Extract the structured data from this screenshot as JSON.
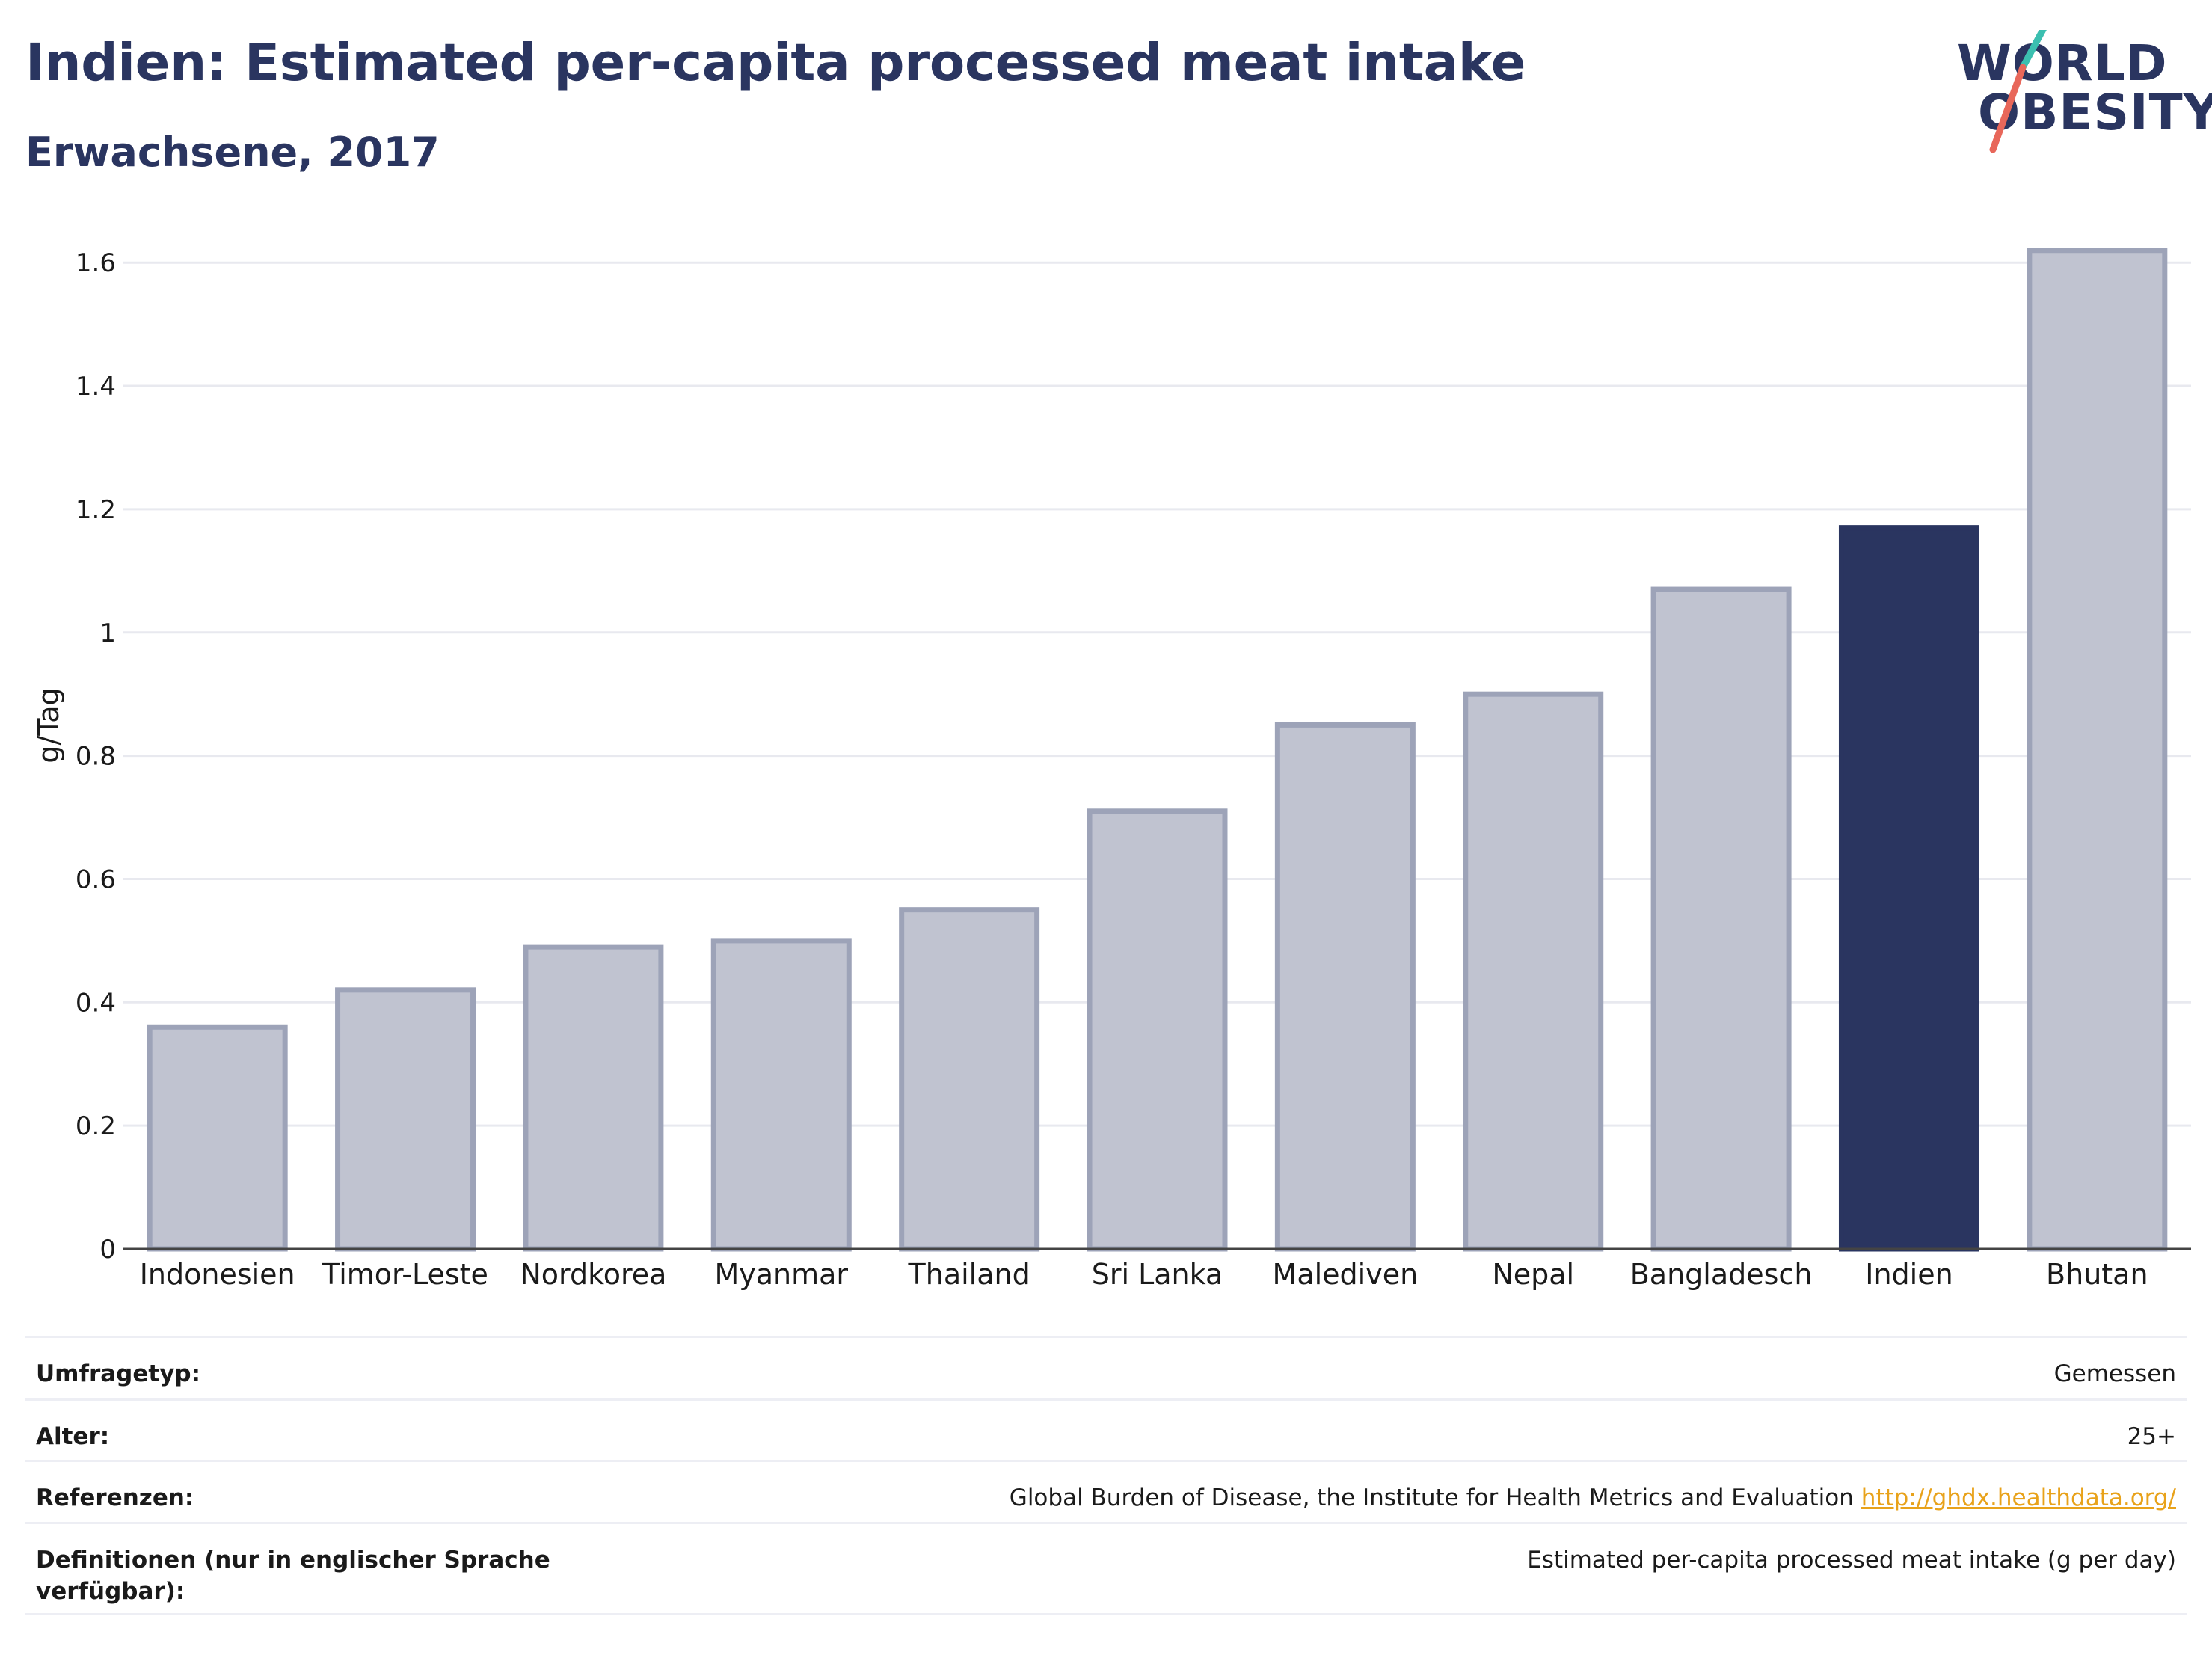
{
  "header": {
    "title": "Indien: Estimated per-capita processed meat intake",
    "subtitle": "Erwachsene, 2017"
  },
  "logo": {
    "line1": "WORLD",
    "line2": "OBESITY",
    "colors": {
      "text": "#2a3560",
      "slash_top": "#3bbfb0",
      "slash_bottom": "#e8675a"
    }
  },
  "chart_data": {
    "type": "bar",
    "categories": [
      "Indonesien",
      "Timor-Leste",
      "Nordkorea",
      "Myanmar",
      "Thailand",
      "Sri Lanka",
      "Malediven",
      "Nepal",
      "Bangladesch",
      "Indien",
      "Bhutan"
    ],
    "values": [
      0.36,
      0.42,
      0.49,
      0.5,
      0.55,
      0.71,
      0.85,
      0.9,
      1.07,
      1.17,
      1.62
    ],
    "highlight": "Indien",
    "ylabel": "g/Tag",
    "ylim": [
      0,
      1.6
    ],
    "yticks": [
      0,
      0.2,
      0.4,
      0.6,
      0.8,
      1,
      1.2,
      1.4,
      1.6
    ],
    "ytick_labels": [
      "0",
      "0.2",
      "0.4",
      "0.6",
      "0.8",
      "1",
      "1.2",
      "1.4",
      "1.6"
    ],
    "grid": true,
    "colors": {
      "bar": "#c0c3d0",
      "bar_edge": "#9da3b8",
      "highlight": "#2a3560"
    }
  },
  "footer": {
    "rows": [
      {
        "key": "Umfragetyp:",
        "value": "Gemessen"
      },
      {
        "key": "Alter:",
        "value": "25+"
      },
      {
        "key": "Referenzen:",
        "value": "Global Burden of Disease, the Institute for Health Metrics and Evaluation",
        "link": "http://ghdx.healthdata.org/"
      },
      {
        "key": "Definitionen (nur in englischer Sprache verfügbar):",
        "value": "Estimated per-capita processed meat intake (g per day)"
      }
    ],
    "link_color": "#e8a21a"
  }
}
